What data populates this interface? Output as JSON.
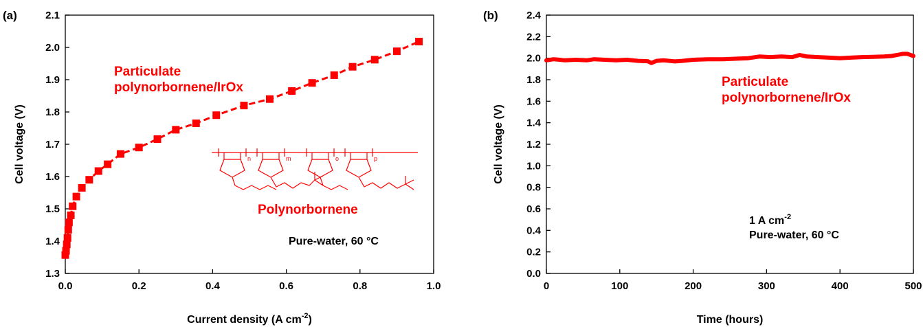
{
  "colors": {
    "series": "#ff0000",
    "axis": "#000000"
  },
  "chart_data": [
    {
      "type": "line",
      "panel_label": "(a)",
      "xlabel": "Current density (A cm",
      "xlabel_sup": "-2",
      "xlabel_end": ")",
      "ylabel": "Cell voltage (V)",
      "xlim": [
        0,
        1.0
      ],
      "ylim": [
        1.3,
        2.1
      ],
      "xticks": [
        "0.0",
        "0.2",
        "0.4",
        "0.6",
        "0.8",
        "1.0"
      ],
      "yticks": [
        "1.3",
        "1.4",
        "1.5",
        "1.6",
        "1.7",
        "1.8",
        "1.9",
        "2.0",
        "2.1"
      ],
      "marker": "square",
      "series": [
        {
          "x": [
            0.0,
            0.002,
            0.004,
            0.006,
            0.008,
            0.01,
            0.015,
            0.02,
            0.03,
            0.045,
            0.065,
            0.09,
            0.115,
            0.15,
            0.2,
            0.25,
            0.3,
            0.355,
            0.41,
            0.485,
            0.555,
            0.615,
            0.67,
            0.73,
            0.78,
            0.84,
            0.9,
            0.96
          ],
          "y": [
            1.357,
            1.37,
            1.39,
            1.41,
            1.435,
            1.458,
            1.48,
            1.508,
            1.538,
            1.565,
            1.59,
            1.617,
            1.638,
            1.67,
            1.69,
            1.716,
            1.745,
            1.765,
            1.79,
            1.82,
            1.84,
            1.865,
            1.89,
            1.914,
            1.94,
            1.962,
            1.988,
            2.018
          ]
        }
      ],
      "annotations": {
        "label_line1": "Particulate",
        "label_line2": "polynorbornene/IrOx",
        "structure_label": "Polynorbornene",
        "structure_subscripts": [
          "n",
          "m",
          "o",
          "p"
        ],
        "condition": "Pure-water, 60 °C"
      }
    },
    {
      "type": "line",
      "panel_label": "(b)",
      "xlabel": "Time (hours)",
      "ylabel": "Cell voltage (V)",
      "xlim": [
        0,
        500
      ],
      "ylim": [
        0.0,
        2.4
      ],
      "xticks": [
        "0",
        "100",
        "200",
        "300",
        "400",
        "500"
      ],
      "yticks": [
        "0.0",
        "0.2",
        "0.4",
        "0.6",
        "0.8",
        "1.0",
        "1.2",
        "1.4",
        "1.6",
        "1.8",
        "2.0",
        "2.2",
        "2.4"
      ],
      "series": [
        {
          "x": [
            0,
            10,
            18,
            25,
            40,
            55,
            65,
            80,
            95,
            110,
            125,
            138,
            143,
            150,
            160,
            175,
            185,
            200,
            220,
            240,
            260,
            275,
            290,
            305,
            320,
            335,
            345,
            355,
            370,
            385,
            400,
            415,
            430,
            445,
            460,
            470,
            478,
            485,
            492,
            500
          ],
          "y": [
            1.98,
            1.99,
            1.985,
            1.98,
            1.985,
            1.98,
            1.99,
            1.985,
            1.98,
            1.985,
            1.975,
            1.972,
            1.955,
            1.975,
            1.98,
            1.97,
            1.975,
            1.985,
            1.99,
            1.99,
            1.995,
            2.0,
            2.015,
            2.01,
            2.015,
            2.01,
            2.03,
            2.015,
            2.01,
            2.005,
            2.0,
            2.005,
            2.01,
            2.012,
            2.015,
            2.02,
            2.03,
            2.04,
            2.04,
            2.02
          ]
        }
      ],
      "annotations": {
        "label_line1": "Particulate",
        "label_line2": "polynorbornene/IrOx",
        "condition_line1": "1 A cm",
        "condition_line1_sup": "-2",
        "condition_line2": "Pure-water, 60 °C"
      }
    }
  ]
}
